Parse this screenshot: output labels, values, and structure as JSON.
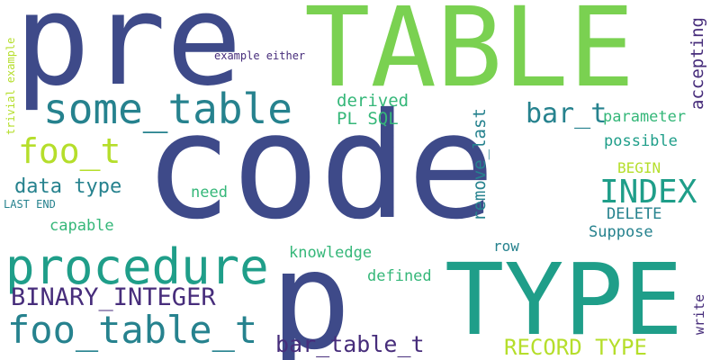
{
  "colors": {
    "navy": "#3e4a89",
    "indigo": "#472d7b",
    "teal": "#26828e",
    "sea": "#1f9e89",
    "green": "#35b779",
    "leaf": "#6ece58",
    "lime": "#7ad151",
    "yellow": "#b5de2b"
  },
  "words": [
    {
      "text": "code",
      "color": "navy"
    },
    {
      "text": "pre",
      "color": "navy"
    },
    {
      "text": "p",
      "color": "navy"
    },
    {
      "text": "TABLE",
      "color": "lime"
    },
    {
      "text": "TYPE",
      "color": "sea"
    },
    {
      "text": "procedure",
      "color": "sea"
    },
    {
      "text": "some_table",
      "color": "teal"
    },
    {
      "text": "foo_table_t",
      "color": "teal"
    },
    {
      "text": "foo_t",
      "color": "yellow"
    },
    {
      "text": "BINARY_INTEGER",
      "color": "indigo"
    },
    {
      "text": "bar_table_t",
      "color": "indigo"
    },
    {
      "text": "INDEX",
      "color": "sea"
    },
    {
      "text": "bar_t",
      "color": "teal"
    },
    {
      "text": "RECORD TYPE",
      "color": "yellow"
    },
    {
      "text": "data type",
      "color": "teal"
    },
    {
      "text": "remove_last",
      "color": "teal"
    },
    {
      "text": "accepting",
      "color": "indigo"
    },
    {
      "text": "derived",
      "color": "green"
    },
    {
      "text": "PL SQL",
      "color": "green"
    },
    {
      "text": "parameter",
      "color": "green"
    },
    {
      "text": "possible",
      "color": "sea"
    },
    {
      "text": "BEGIN",
      "color": "yellow"
    },
    {
      "text": "DELETE",
      "color": "teal"
    },
    {
      "text": "Suppose",
      "color": "teal"
    },
    {
      "text": "need",
      "color": "green"
    },
    {
      "text": "capable",
      "color": "green"
    },
    {
      "text": "knowledge",
      "color": "green"
    },
    {
      "text": "row",
      "color": "teal"
    },
    {
      "text": "defined",
      "color": "green"
    },
    {
      "text": "write",
      "color": "indigo"
    },
    {
      "text": "example either",
      "color": "indigo"
    },
    {
      "text": "trivial example",
      "color": "yellow"
    },
    {
      "text": "LAST END",
      "color": "teal"
    }
  ]
}
